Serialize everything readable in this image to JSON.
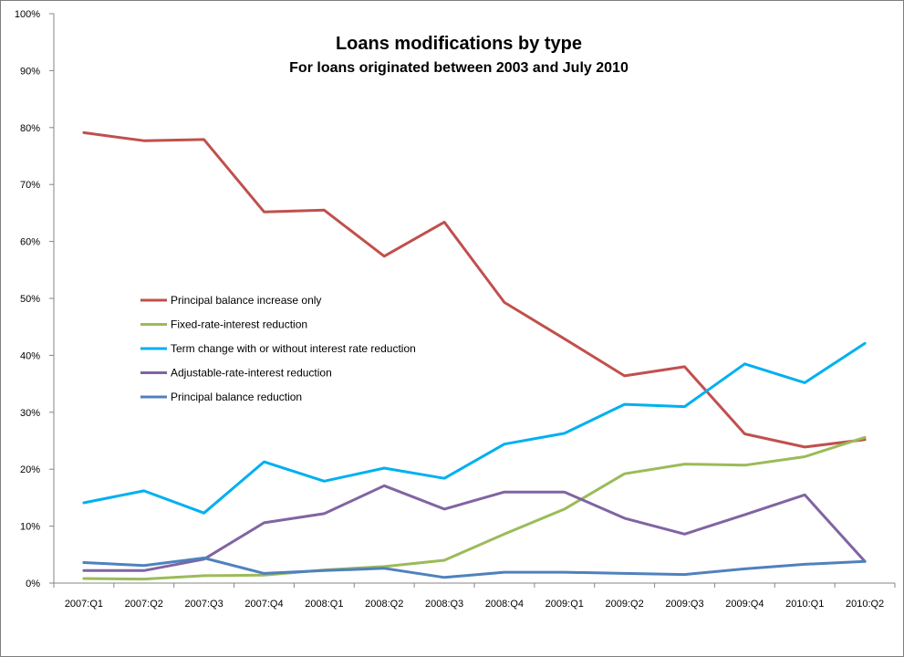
{
  "chart_data": {
    "type": "line",
    "title": "Loans modifications by type",
    "subtitle": "For loans originated between 2003 and July 2010",
    "xlabel": "",
    "ylabel": "",
    "categories": [
      "2007:Q1",
      "2007:Q2",
      "2007:Q3",
      "2007:Q4",
      "2008:Q1",
      "2008:Q2",
      "2008:Q3",
      "2008:Q4",
      "2009:Q1",
      "2009:Q2",
      "2009:Q3",
      "2009:Q4",
      "2010:Q1",
      "2010:Q2"
    ],
    "ylim": [
      0,
      100
    ],
    "yticks": [
      0,
      10,
      20,
      30,
      40,
      50,
      60,
      70,
      80,
      90,
      100
    ],
    "ytick_labels": [
      "0%",
      "10%",
      "20%",
      "30%",
      "40%",
      "50%",
      "60%",
      "70%",
      "80%",
      "90%",
      "100%"
    ],
    "grid": false,
    "legend_position": "center-left",
    "series": [
      {
        "name": "Principal balance increase only",
        "color": "#c0504d",
        "values": [
          79.1,
          77.7,
          77.9,
          65.2,
          65.5,
          57.4,
          63.4,
          49.3,
          42.9,
          36.4,
          38.0,
          26.2,
          23.9,
          25.2
        ]
      },
      {
        "name": "Fixed-rate-interest reduction",
        "color": "#9bbb59",
        "values": [
          0.8,
          0.7,
          1.3,
          1.4,
          2.3,
          2.9,
          4.0,
          8.6,
          13.0,
          19.2,
          20.9,
          20.7,
          22.2,
          25.6
        ]
      },
      {
        "name": "Term change with or without interest rate reduction",
        "color": "#00b0f0",
        "values": [
          14.1,
          16.2,
          12.3,
          21.3,
          17.9,
          20.2,
          18.4,
          24.4,
          26.3,
          31.4,
          31.0,
          38.5,
          35.2,
          42.1
        ]
      },
      {
        "name": "Adjustable-rate-interest reduction",
        "color": "#8064a2",
        "values": [
          2.2,
          2.2,
          4.2,
          10.6,
          12.2,
          17.1,
          13.0,
          16.0,
          16.0,
          11.4,
          8.6,
          12.0,
          15.5,
          3.8
        ]
      },
      {
        "name": "Principal balance reduction",
        "color": "#4f81bd",
        "values": [
          3.6,
          3.1,
          4.4,
          1.7,
          2.2,
          2.6,
          1.0,
          1.9,
          1.9,
          1.7,
          1.5,
          2.5,
          3.3,
          3.8
        ]
      }
    ]
  }
}
